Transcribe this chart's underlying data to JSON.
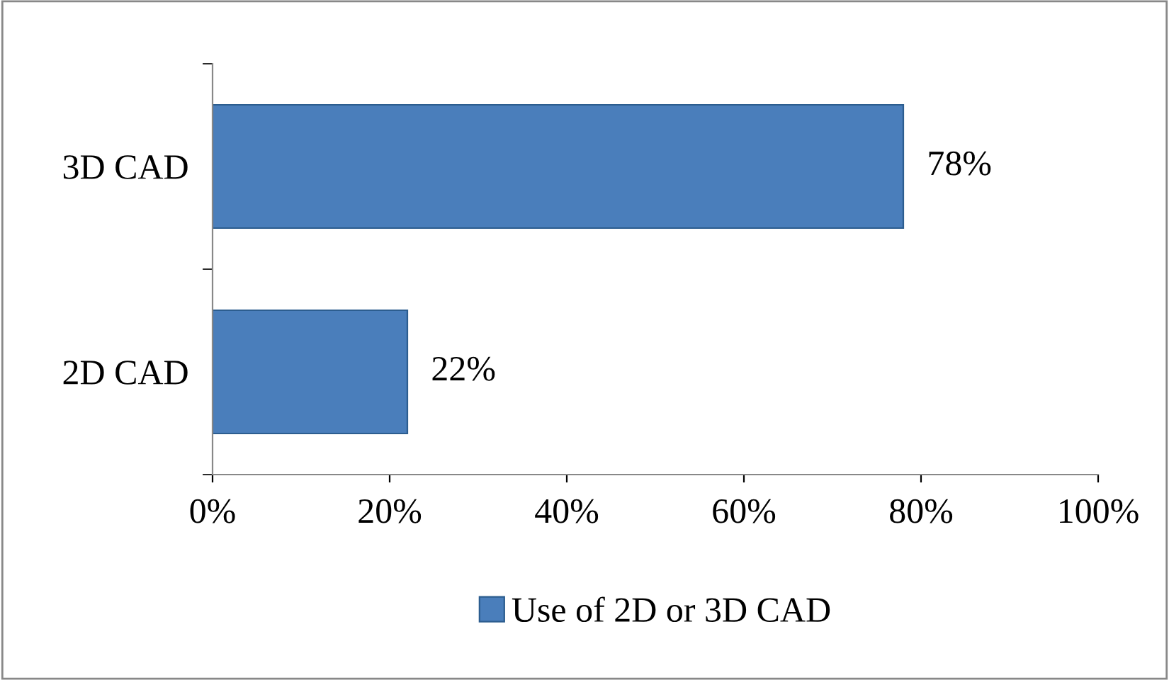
{
  "chart_data": {
    "type": "bar",
    "orientation": "horizontal",
    "categories": [
      "3D CAD",
      "2D CAD"
    ],
    "series": [
      {
        "name": "Use of 2D or 3D CAD",
        "color": "#4a7ebb",
        "values": [
          78,
          22
        ],
        "value_labels": [
          "78%",
          "22%"
        ]
      }
    ],
    "xlim": [
      0,
      100
    ],
    "xticks": [
      {
        "value": 0,
        "label": "0%"
      },
      {
        "value": 20,
        "label": "20%"
      },
      {
        "value": 40,
        "label": "40%"
      },
      {
        "value": 60,
        "label": "60%"
      },
      {
        "value": 80,
        "label": "80%"
      },
      {
        "value": 100,
        "label": "100%"
      }
    ],
    "grid": false,
    "legend": "bottom"
  }
}
